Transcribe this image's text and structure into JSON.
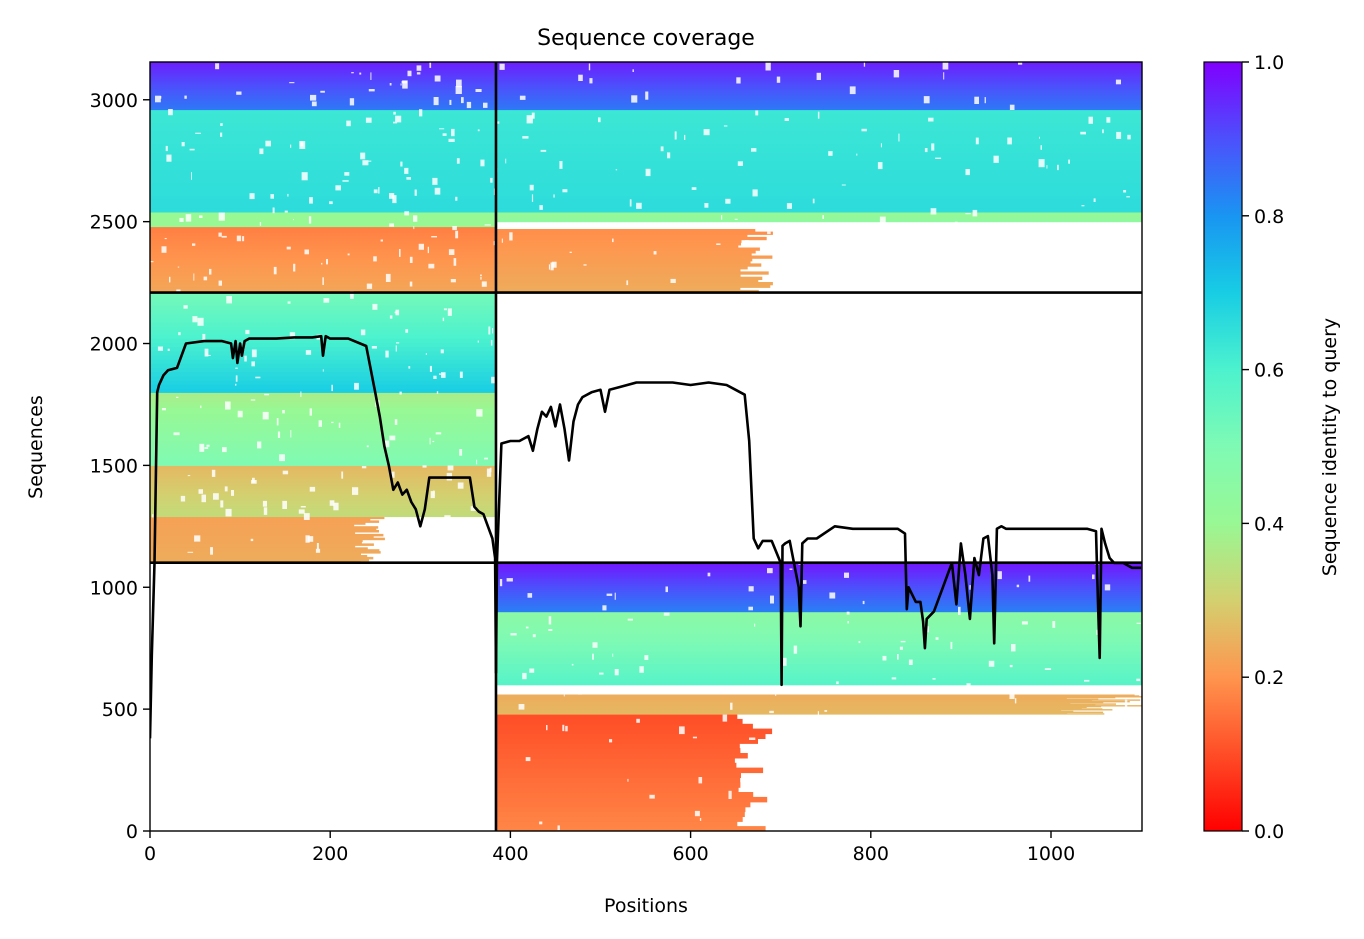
{
  "chart_data": {
    "type": "heatmap",
    "title": "Sequence coverage",
    "xlabel": "Positions",
    "ylabel": "Sequences",
    "xlim": [
      0,
      1101
    ],
    "ylim": [
      0,
      3155
    ],
    "x_ticks": [
      0,
      200,
      400,
      600,
      800,
      1000
    ],
    "y_ticks": [
      0,
      500,
      1000,
      1500,
      2000,
      2500,
      3000
    ],
    "colorbar": {
      "label": "Sequence identity to query",
      "range": [
        0,
        1
      ],
      "ticks": [
        "0.0",
        "0.2",
        "0.4",
        "0.6",
        "0.8",
        "1.0"
      ],
      "colormap": "rainbow_r"
    },
    "chain_boundaries": {
      "x": [
        384
      ],
      "y": [
        1101,
        2209
      ]
    },
    "blocks": [
      {
        "x0": 0,
        "x1": 384,
        "y0": 2209,
        "y1": 3155,
        "rows": [
          [
            2209,
            2480,
            0.23,
            0.17,
            384
          ],
          [
            2480,
            2540,
            0.4,
            0.4,
            384
          ],
          [
            2540,
            2960,
            0.66,
            0.63,
            384
          ],
          [
            2960,
            3155,
            0.84,
            0.96,
            384
          ]
        ]
      },
      {
        "x0": 384,
        "x1": 1101,
        "y0": 2209,
        "y1": 3155,
        "rows": [
          [
            2209,
            2470,
            0.24,
            0.19,
            670
          ],
          [
            2500,
            2540,
            0.44,
            0.4,
            1101
          ],
          [
            2540,
            2960,
            0.66,
            0.63,
            1101
          ],
          [
            2960,
            3155,
            0.84,
            0.96,
            1101
          ]
        ]
      },
      {
        "x0": 0,
        "x1": 384,
        "y0": 1101,
        "y1": 2209,
        "rows": [
          [
            1101,
            1290,
            0.24,
            0.22,
            245
          ],
          [
            1290,
            1500,
            0.33,
            0.26,
            384
          ],
          [
            1500,
            1800,
            0.5,
            0.37,
            384
          ],
          [
            1800,
            2209,
            0.7,
            0.52,
            384
          ]
        ]
      },
      {
        "x0": 384,
        "x1": 1101,
        "y0": 0,
        "y1": 1101,
        "rows": [
          [
            0,
            480,
            0.18,
            0.1,
            670
          ],
          [
            480,
            560,
            0.26,
            0.24,
            1060
          ],
          [
            600,
            900,
            0.58,
            0.45,
            1101
          ],
          [
            900,
            1101,
            0.83,
            0.97,
            1101
          ]
        ]
      }
    ],
    "coverage_line": {
      "x": [
        0,
        2,
        5,
        8,
        10,
        15,
        20,
        30,
        40,
        60,
        80,
        90,
        92,
        95,
        97,
        100,
        102,
        105,
        110,
        120,
        140,
        160,
        180,
        190,
        192,
        195,
        200,
        220,
        240,
        250,
        255,
        260,
        265,
        270,
        275,
        280,
        285,
        290,
        295,
        300,
        305,
        310,
        320,
        340,
        355,
        360,
        365,
        370,
        375,
        380,
        383,
        384,
        385,
        390,
        400,
        410,
        420,
        425,
        430,
        435,
        440,
        445,
        450,
        455,
        460,
        465,
        470,
        475,
        480,
        490,
        500,
        505,
        510,
        520,
        540,
        560,
        580,
        600,
        620,
        640,
        650,
        660,
        665,
        670,
        675,
        680,
        690,
        700,
        701,
        702,
        705,
        710,
        720,
        722,
        724,
        730,
        740,
        760,
        780,
        800,
        820,
        830,
        838,
        840,
        842,
        850,
        855,
        858,
        860,
        862,
        870,
        880,
        890,
        895,
        900,
        905,
        910,
        915,
        920,
        925,
        930,
        935,
        937,
        940,
        945,
        950,
        960,
        980,
        1000,
        1020,
        1040,
        1050,
        1052,
        1054,
        1056,
        1060,
        1065,
        1070,
        1080,
        1090,
        1100
      ],
      "y": [
        380,
        720,
        1100,
        1800,
        1830,
        1870,
        1890,
        1900,
        2000,
        2010,
        2010,
        2000,
        1940,
        2010,
        1920,
        2000,
        1950,
        2010,
        2020,
        2020,
        2020,
        2025,
        2025,
        2030,
        1950,
        2030,
        2020,
        2020,
        1990,
        1800,
        1700,
        1580,
        1500,
        1400,
        1430,
        1380,
        1400,
        1350,
        1320,
        1250,
        1320,
        1450,
        1450,
        1450,
        1450,
        1330,
        1310,
        1300,
        1250,
        1200,
        1120,
        650,
        1100,
        1590,
        1600,
        1600,
        1620,
        1560,
        1650,
        1720,
        1700,
        1740,
        1660,
        1750,
        1650,
        1520,
        1680,
        1750,
        1780,
        1800,
        1810,
        1720,
        1810,
        1820,
        1840,
        1840,
        1840,
        1830,
        1840,
        1830,
        1810,
        1790,
        1600,
        1200,
        1160,
        1190,
        1190,
        1100,
        600,
        1170,
        1180,
        1190,
        1000,
        840,
        1180,
        1200,
        1200,
        1250,
        1240,
        1240,
        1240,
        1240,
        1220,
        910,
        1000,
        940,
        940,
        860,
        750,
        870,
        900,
        1000,
        1100,
        930,
        1180,
        1050,
        870,
        1120,
        1050,
        1200,
        1210,
        1050,
        770,
        1240,
        1250,
        1240,
        1240,
        1240,
        1240,
        1240,
        1240,
        1230,
        950,
        710,
        1240,
        1180,
        1120,
        1100,
        1100,
        1080,
        1080
      ]
    }
  }
}
